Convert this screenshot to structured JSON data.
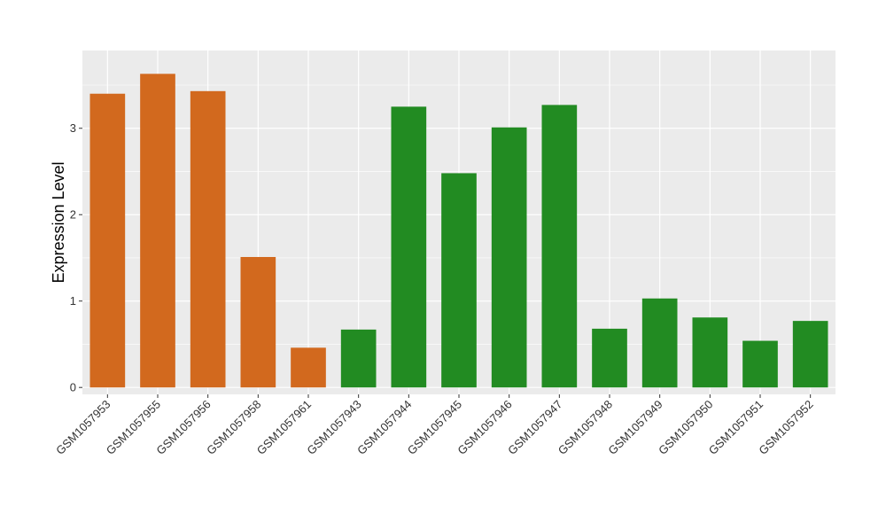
{
  "chart_data": {
    "type": "bar",
    "title": "",
    "xlabel": "",
    "ylabel": "Expression Level",
    "ylim": [
      -0.08,
      3.9
    ],
    "yticks": [
      0,
      1,
      2,
      3
    ],
    "grid": true,
    "legend": "none",
    "background_color": "#EBEBEB",
    "grid_color": "#FFFFFF",
    "categories": [
      "GSM1057953",
      "GSM1057955",
      "GSM1057956",
      "GSM1057958",
      "GSM1057961",
      "GSM1057943",
      "GSM1057944",
      "GSM1057945",
      "GSM1057946",
      "GSM1057947",
      "GSM1057948",
      "GSM1057949",
      "GSM1057950",
      "GSM1057951",
      "GSM1057952"
    ],
    "values": [
      3.4,
      3.63,
      3.43,
      1.51,
      0.46,
      0.67,
      3.25,
      2.48,
      3.01,
      3.27,
      0.68,
      1.03,
      0.81,
      0.54,
      0.77
    ],
    "colors": [
      "#D2691E",
      "#D2691E",
      "#D2691E",
      "#D2691E",
      "#D2691E",
      "#228B22",
      "#228B22",
      "#228B22",
      "#228B22",
      "#228B22",
      "#228B22",
      "#228B22",
      "#228B22",
      "#228B22",
      "#228B22"
    ]
  }
}
